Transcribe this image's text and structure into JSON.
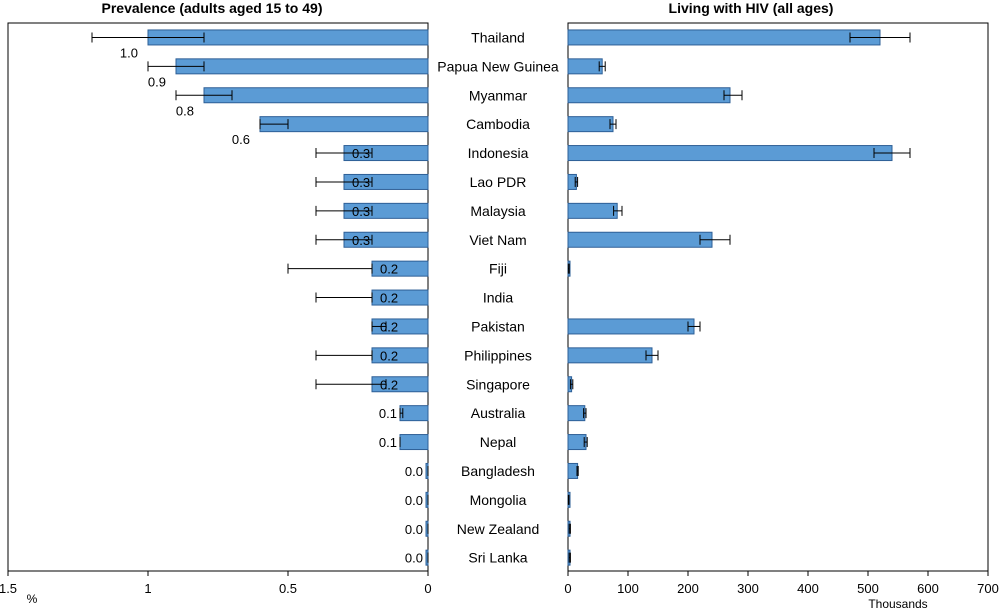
{
  "chart_data": [
    {
      "type": "bar",
      "orientation": "horizontal-reversed",
      "title": "Prevalence (adults aged 15 to 49)",
      "xlabel": "%",
      "xlim": [
        1.5,
        0
      ],
      "xticks": [
        "1.5",
        "1",
        "0.5",
        "0"
      ],
      "grid": false,
      "categories": [
        "Thailand",
        "Papua New Guinea",
        "Myanmar",
        "Cambodia",
        "Indonesia",
        "Lao PDR",
        "Malaysia",
        "Viet Nam",
        "Fiji",
        "India",
        "Pakistan",
        "Philippines",
        "Singapore",
        "Australia",
        "Nepal",
        "Bangladesh",
        "Mongolia",
        "New Zealand",
        "Sri Lanka"
      ],
      "values": [
        1.0,
        0.9,
        0.8,
        0.6,
        0.3,
        0.3,
        0.3,
        0.3,
        0.2,
        0.2,
        0.2,
        0.2,
        0.2,
        0.1,
        0.1,
        0.0,
        0.0,
        0.0,
        0.0
      ],
      "labels": [
        "1.0",
        "0.9",
        "0.8",
        "0.6",
        "0.3",
        "0.3",
        "0.3",
        "0.3",
        "0.2",
        "0.2",
        "0.2",
        "0.2",
        "0.2",
        "0.1",
        "0.1",
        "0.0",
        "0.0",
        "0.0",
        "0.0"
      ],
      "error_low": [
        0.8,
        0.8,
        0.7,
        0.5,
        0.2,
        0.2,
        0.2,
        0.2,
        0.2,
        0.2,
        0.15,
        0.2,
        0.15,
        0.09,
        0.1,
        0.0,
        0.0,
        0.0,
        0.0
      ],
      "error_high": [
        1.2,
        1.0,
        0.9,
        0.6,
        0.4,
        0.4,
        0.4,
        0.4,
        0.5,
        0.4,
        0.2,
        0.4,
        0.4,
        0.1,
        0.1,
        0.0,
        0.0,
        0.0,
        0.0
      ]
    },
    {
      "type": "bar",
      "orientation": "horizontal",
      "title": "Living with HIV (all ages)",
      "xlabel": "Thousands",
      "xlim": [
        0,
        700
      ],
      "xticks": [
        "0",
        "100",
        "200",
        "300",
        "400",
        "500",
        "600",
        "700"
      ],
      "grid": false,
      "categories": [
        "Thailand",
        "Papua New Guinea",
        "Myanmar",
        "Cambodia",
        "Indonesia",
        "Lao PDR",
        "Malaysia",
        "Viet Nam",
        "Fiji",
        "India",
        "Pakistan",
        "Philippines",
        "Singapore",
        "Australia",
        "Nepal",
        "Bangladesh",
        "Mongolia",
        "New Zealand",
        "Sri Lanka"
      ],
      "values": [
        520,
        57,
        270,
        75,
        540,
        14,
        82,
        240,
        1,
        null,
        210,
        140,
        6,
        28,
        30,
        16,
        1,
        3,
        3
      ],
      "error_low": [
        470,
        52,
        260,
        70,
        510,
        12,
        76,
        220,
        0.5,
        null,
        200,
        130,
        4,
        26,
        27,
        15,
        0.5,
        2,
        2
      ],
      "error_high": [
        570,
        62,
        290,
        80,
        570,
        16,
        90,
        270,
        2,
        null,
        220,
        150,
        8,
        30,
        32,
        17,
        1.5,
        4,
        4
      ]
    }
  ]
}
